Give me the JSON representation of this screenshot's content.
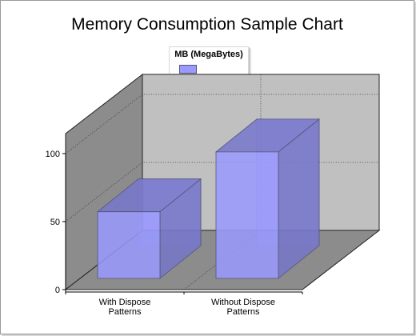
{
  "chart_data": {
    "type": "bar",
    "title": "Memory Consumption Sample Chart",
    "categories": [
      "With Dispose Patterns",
      "Without Dispose Patterns"
    ],
    "category_lines": [
      [
        "With Dispose",
        "Patterns"
      ],
      [
        "Without Dispose",
        "Patterns"
      ]
    ],
    "series": [
      {
        "name": "MB (MegaBytes)",
        "values": [
          49,
          93
        ],
        "color": "#9999ff"
      }
    ],
    "ylim": [
      0,
      100
    ],
    "yticks": [
      0,
      50,
      100
    ],
    "xlabel": "",
    "ylabel": "",
    "grid": true,
    "legend_position": "top-center",
    "three_d": true,
    "colors": {
      "back_wall": "#c0c0c0",
      "side_wall": "#8c8c8c",
      "floor": "#8c8c8c",
      "bar": "#9999ff"
    }
  }
}
